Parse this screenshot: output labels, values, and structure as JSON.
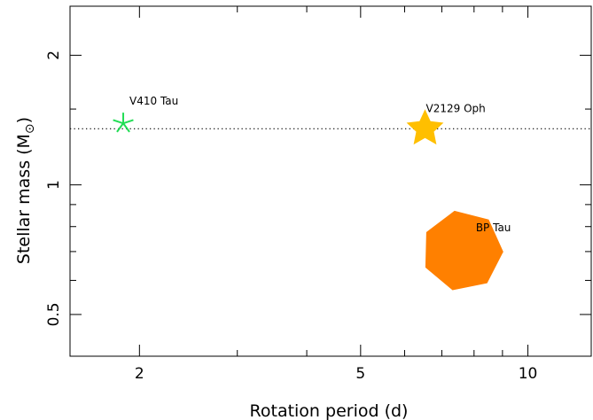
{
  "chart_data": {
    "type": "scatter",
    "title": "",
    "xlabel": "Rotation period (d)",
    "ylabel": "Stellar mass (M",
    "ylabel_symbol": "⊙",
    "ylabel_close": ")",
    "x_scale": "log",
    "y_scale": "log",
    "xlim": [
      1.5,
      13.0
    ],
    "ylim": [
      0.4,
      2.6
    ],
    "x_major_ticks": [
      2,
      5,
      10
    ],
    "x_minor_ticks": [
      3,
      4,
      6,
      7,
      8,
      9
    ],
    "y_major_ticks": [
      0.5,
      1,
      2
    ],
    "y_tick_labels": [
      "0.5",
      "1",
      "2"
    ],
    "y_minor_ticks": [
      0.6,
      0.7,
      0.8,
      0.9,
      1.5
    ],
    "reference_line": {
      "y": 1.35,
      "style": "dotted"
    },
    "grid": false,
    "points": [
      {
        "label": "V410 Tau",
        "x": 1.87,
        "y": 1.39,
        "marker": "asterisk",
        "color": "#22dd55",
        "size": "small"
      },
      {
        "label": "V2129 Oph",
        "x": 6.53,
        "y": 1.35,
        "marker": "star",
        "color": "#ffbf00",
        "size": "medium"
      },
      {
        "label": "BP Tau",
        "x": 7.6,
        "y": 0.72,
        "marker": "heptagon",
        "color": "#ff8000",
        "size": "large"
      }
    ]
  }
}
